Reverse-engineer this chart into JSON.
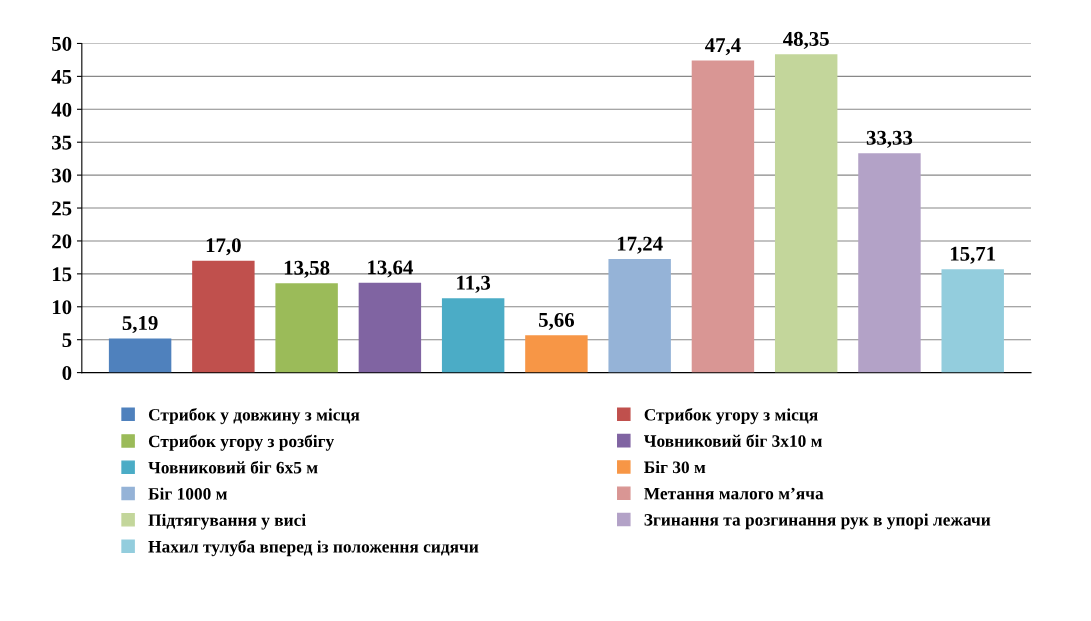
{
  "chart_data": {
    "type": "bar",
    "categories": [
      null
    ],
    "series": [
      {
        "name": "Стрибок у довжину з місця",
        "color": "#4f81bd",
        "values": [
          5.19
        ],
        "value_labels": [
          "5,19"
        ]
      },
      {
        "name": "Стрибок угору з місця",
        "color": "#c0504d",
        "values": [
          17.0
        ],
        "value_labels": [
          "17,0"
        ]
      },
      {
        "name": "Стрибок угору з розбігу",
        "color": "#9bbb59",
        "values": [
          13.58
        ],
        "value_labels": [
          "13,58"
        ]
      },
      {
        "name": "Човниковий біг 3х10 м",
        "color": "#8064a2",
        "values": [
          13.64
        ],
        "value_labels": [
          "13,64"
        ]
      },
      {
        "name": "Човниковий біг 6х5 м",
        "color": "#4bacc6",
        "values": [
          11.3
        ],
        "value_labels": [
          "11,3"
        ]
      },
      {
        "name": "Біг 30 м",
        "color": "#f79646",
        "values": [
          5.66
        ],
        "value_labels": [
          "5,66"
        ]
      },
      {
        "name": "Біг 1000 м",
        "color": "#95b3d7",
        "values": [
          17.24
        ],
        "value_labels": [
          "17,24"
        ]
      },
      {
        "name": "Метання малого м’яча",
        "color": "#d99694",
        "values": [
          47.4
        ],
        "value_labels": [
          "47,4"
        ]
      },
      {
        "name": "Підтягування у висі",
        "color": "#c3d69b",
        "values": [
          48.35
        ],
        "value_labels": [
          "48,35"
        ]
      },
      {
        "name": "Згинання та розгинання рук в упорі лежачи",
        "color": "#b3a2c7",
        "values": [
          33.33
        ],
        "value_labels": [
          "33,33"
        ]
      },
      {
        "name": "Нахил тулуба вперед із положення сидячи",
        "color": "#93cddd",
        "values": [
          15.71
        ],
        "value_labels": [
          "15,71"
        ]
      }
    ],
    "ylim": [
      0,
      50
    ],
    "yticks": [
      0,
      5,
      10,
      15,
      20,
      25,
      30,
      35,
      40,
      45,
      50
    ],
    "grid": "y",
    "legend": "bottom"
  }
}
